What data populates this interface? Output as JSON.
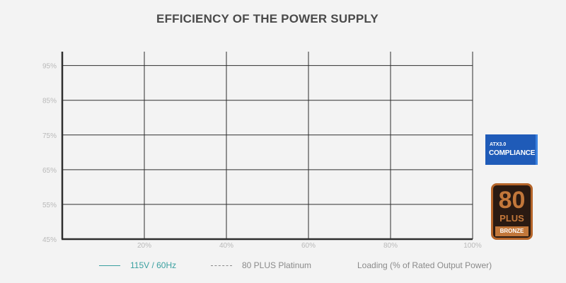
{
  "title": "EFFICIENCY OF THE POWER SUPPLY",
  "chart_data": {
    "type": "line",
    "title": "EFFICIENCY OF THE POWER SUPPLY",
    "xlabel": "Loading (% of Rated Output Power)",
    "ylabel": "",
    "x_ticks": [
      "20%",
      "40%",
      "60%",
      "80%",
      "100%"
    ],
    "x_tick_values": [
      20,
      40,
      60,
      80,
      100
    ],
    "y_ticks": [
      "95%",
      "85%",
      "75%",
      "65%",
      "55%",
      "45%"
    ],
    "y_tick_values": [
      95,
      85,
      75,
      65,
      55,
      45
    ],
    "xlim": [
      0,
      100
    ],
    "ylim": [
      45,
      99
    ],
    "grid": true,
    "legend_position": "bottom",
    "series": [
      {
        "name": "115V / 60Hz",
        "style": "solid",
        "color": "#3aa0a0",
        "values": []
      },
      {
        "name": "80 PLUS Platinum",
        "style": "dashed",
        "color": "#8a8a8a",
        "values": []
      }
    ]
  },
  "legend": {
    "series1": "115V / 60Hz",
    "series2": "80 PLUS Platinum",
    "axis_note": "Loading (% of Rated Output Power)"
  },
  "colors": {
    "background": "#f3f3f3",
    "grid": "#2e2e2e",
    "tick_text": "#b9b9b9",
    "series1_text": "#3aa0a0",
    "legend_text": "#8a8a8a"
  },
  "badges": {
    "atx_top": "ATX3.0",
    "atx_main": "COMPLIANCE",
    "plus_number": "80",
    "plus_word": "PLUS",
    "plus_tier": "BRONZE"
  }
}
